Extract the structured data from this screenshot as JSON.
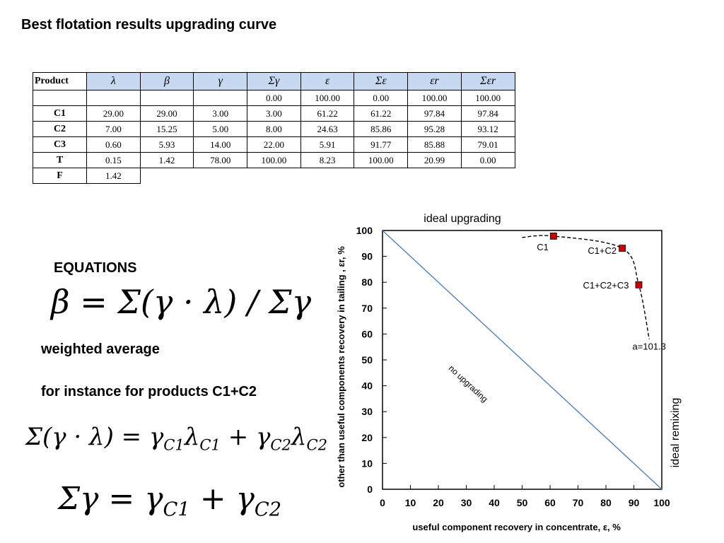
{
  "slide": {
    "title": "Best flotation results  upgrading curve"
  },
  "table": {
    "headers": [
      "Product",
      "λ",
      "β",
      "γ",
      "Σγ",
      "ε",
      "Σε",
      "εr",
      "Σεr"
    ],
    "rows": [
      {
        "label": "",
        "cells": [
          "",
          "",
          "",
          "0.00",
          "100.00",
          "0.00",
          "100.00",
          "100.00"
        ]
      },
      {
        "label": "C1",
        "cells": [
          "29.00",
          "29.00",
          "3.00",
          "3.00",
          "61.22",
          "61.22",
          "97.84",
          "97.84"
        ]
      },
      {
        "label": "C2",
        "cells": [
          "7.00",
          "15.25",
          "5.00",
          "8.00",
          "24.63",
          "85.86",
          "95.28",
          "93.12"
        ]
      },
      {
        "label": "C3",
        "cells": [
          "0.60",
          "5.93",
          "14.00",
          "22.00",
          "5.91",
          "91.77",
          "85.88",
          "79.01"
        ]
      },
      {
        "label": "T",
        "cells": [
          "0.15",
          "1.42",
          "78.00",
          "100.00",
          "8.23",
          "100.00",
          "20.99",
          "0.00"
        ]
      }
    ],
    "feed": {
      "label": "F",
      "value": "1.42"
    }
  },
  "equations": {
    "heading": "EQUATIONS",
    "beta_formula": "β = Σ(γ · λ) / Σγ",
    "weighted_average": "weighted average",
    "instance_text": "for instance for  products C1+C2",
    "sum_formula_lhs": "Σ(γ · λ) = ",
    "sum_g_lhs": "Σγ = ",
    "sym_gamma": "γ",
    "sym_lambda": "λ",
    "plus": " + ",
    "sub_c1": "C1",
    "sub_c2": "C2"
  },
  "chart_data": {
    "type": "line",
    "title": "ideal upgrading",
    "xlabel": "useful component  recovery in concentrate, ε, %",
    "ylabel": "other than useful components recovery in tailing , εr, %",
    "xlim": [
      0,
      100
    ],
    "ylim": [
      0,
      100
    ],
    "xticks": [
      0,
      10,
      20,
      30,
      40,
      50,
      60,
      70,
      80,
      90,
      100
    ],
    "yticks": [
      0,
      10,
      20,
      30,
      40,
      50,
      60,
      70,
      80,
      90,
      100
    ],
    "right_label": "ideal remixing",
    "series": [
      {
        "name": "no upgrading",
        "style": "solid",
        "color": "#4f81bd",
        "x": [
          0,
          100
        ],
        "y": [
          100,
          0
        ]
      },
      {
        "name": "upgrading curve",
        "style": "dashed",
        "color": "#000000",
        "x": [
          50,
          61.22,
          85.86,
          91.77,
          95.5
        ],
        "y": [
          97.3,
          97.84,
          93.12,
          79.01,
          58
        ]
      }
    ],
    "points": [
      {
        "label": "C1",
        "x": 61.22,
        "y": 97.84
      },
      {
        "label": "C1+C2",
        "x": 85.86,
        "y": 93.12
      },
      {
        "label": "C1+C2+C3",
        "x": 91.77,
        "y": 79.01
      }
    ],
    "annotations": [
      {
        "text": "no upgrading"
      },
      {
        "text": "a=101.3"
      }
    ],
    "marker_color": "#cc0000"
  }
}
